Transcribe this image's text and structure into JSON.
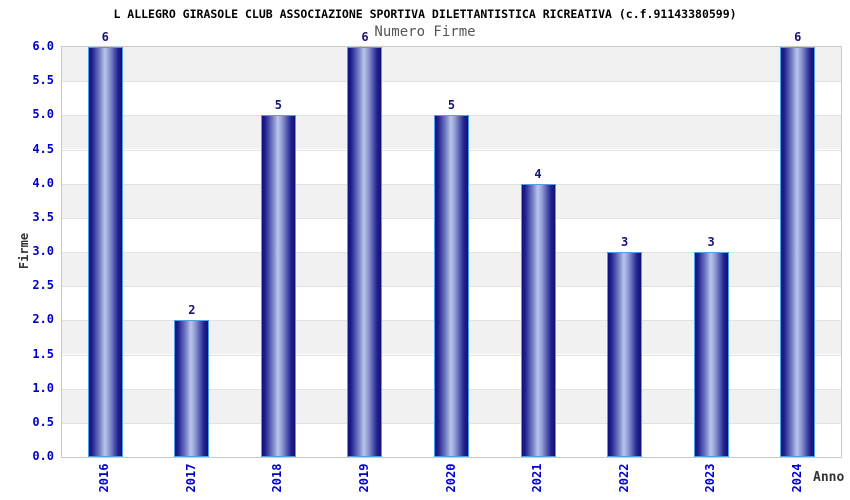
{
  "header": {
    "title": "L ALLEGRO GIRASOLE CLUB ASSOCIAZIONE SPORTIVA DILETTANTISTICA RICREATIVA (c.f.91143380599)",
    "subtitle": "Numero Firme"
  },
  "chart_data": {
    "type": "bar",
    "title": "L ALLEGRO GIRASOLE CLUB ASSOCIAZIONE SPORTIVA DILETTANTISTICA RICREATIVA (c.f.91143380599)",
    "subtitle": "Numero Firme",
    "categories": [
      "2016",
      "2017",
      "2018",
      "2019",
      "2020",
      "2021",
      "2022",
      "2023",
      "2024"
    ],
    "values": [
      6,
      2,
      5,
      6,
      5,
      4,
      3,
      3,
      6
    ],
    "xlabel": "Anno",
    "ylabel": "Firme",
    "ylim": [
      0,
      6
    ],
    "ytick_step": 0.5,
    "ytick_labels": [
      "0.0",
      "0.5",
      "1.0",
      "1.5",
      "2.0",
      "2.5",
      "3.0",
      "3.5",
      "4.0",
      "4.5",
      "5.0",
      "5.5",
      "6.0"
    ],
    "legend": "none",
    "grid": "horizontal-stripes",
    "colors": {
      "bar_dark": "#101078",
      "bar_mid": "#7680c4",
      "bar_light": "#bcc4ec",
      "bar_outline": "#4da0e8",
      "tick_label": "#0000cc",
      "value_label": "#14147a",
      "stripe_gray": "#f1f1f1",
      "stripe_white": "#ffffff",
      "plot_border": "#c9c9c9",
      "gridline": "#e2e2e2",
      "title_color": "#000000",
      "subtitle_color": "#555555",
      "axis_label_color": "#333333"
    }
  }
}
